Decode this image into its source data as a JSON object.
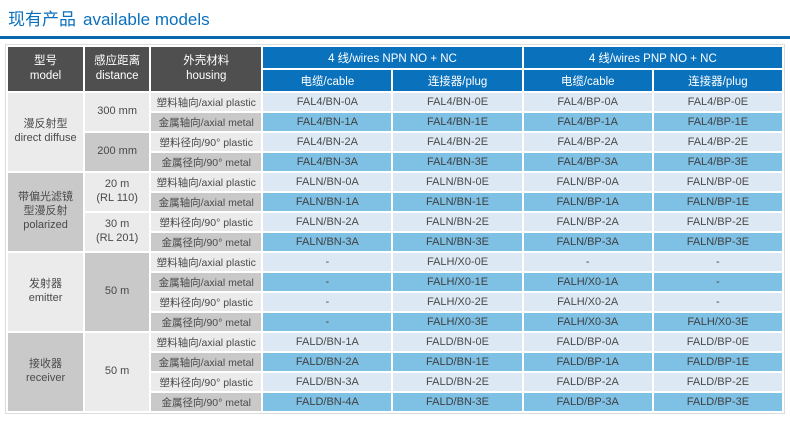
{
  "title": {
    "zh": "现有产品",
    "en": "available models"
  },
  "colors": {
    "accent_blue": "#0a70bd",
    "rule_blue": "#0a67ae",
    "header_gray": "#4f4f4f",
    "blue_header": "#0a72bd",
    "row_light_blue": "#dce8f3",
    "row_medium_blue": "#7fc0e5",
    "cell_light_gray": "#ebebeb",
    "cell_medium_gray": "#c9c9c9"
  },
  "table": {
    "columns": {
      "model": {
        "zh": "型号",
        "en": "model"
      },
      "distance": {
        "zh": "感应距离",
        "en": "distance"
      },
      "housing": {
        "zh": "外壳材料",
        "en": "housing"
      },
      "npn_group": "4 线/wires NPN NO + NC",
      "pnp_group": "4 线/wires PNP NO + NC",
      "cable": "电缆/cable",
      "plug": "连接器/plug"
    },
    "groups": [
      {
        "model_lines": [
          "漫反射型",
          "direct diffuse"
        ],
        "model_shade": "light",
        "distances": [
          {
            "lines": [
              "300 mm"
            ],
            "rows": 2,
            "shade": "light"
          },
          {
            "lines": [
              "200 mm"
            ],
            "rows": 2,
            "shade": "dark"
          }
        ],
        "rows": [
          {
            "housing": "塑料轴向/axial plastic",
            "cells": [
              "FAL4/BN-0A",
              "FAL4/BN-0E",
              "FAL4/BP-0A",
              "FAL4/BP-0E"
            ]
          },
          {
            "housing": "金属轴向/axial metal",
            "cells": [
              "FAL4/BN-1A",
              "FAL4/BN-1E",
              "FAL4/BP-1A",
              "FAL4/BP-1E"
            ]
          },
          {
            "housing": "塑料径向/90° plastic",
            "cells": [
              "FAL4/BN-2A",
              "FAL4/BN-2E",
              "FAL4/BP-2A",
              "FAL4/BP-2E"
            ]
          },
          {
            "housing": "金属径向/90° metal",
            "cells": [
              "FAL4/BN-3A",
              "FAL4/BN-3E",
              "FAL4/BP-3A",
              "FAL4/BP-3E"
            ]
          }
        ]
      },
      {
        "model_lines": [
          "带偏光滤镜",
          "型漫反射",
          "polarized"
        ],
        "model_shade": "dark",
        "distances": [
          {
            "lines": [
              "20 m",
              "(RL 110)"
            ],
            "rows": 2,
            "shade": "light"
          },
          {
            "lines": [
              "30 m",
              "(RL 201)"
            ],
            "rows": 2,
            "shade": "light"
          }
        ],
        "rows": [
          {
            "housing": "塑料轴向/axial plastic",
            "cells": [
              "FALN/BN-0A",
              "FALN/BN-0E",
              "FALN/BP-0A",
              "FALN/BP-0E"
            ]
          },
          {
            "housing": "金属轴向/axial metal",
            "cells": [
              "FALN/BN-1A",
              "FALN/BN-1E",
              "FALN/BP-1A",
              "FALN/BP-1E"
            ]
          },
          {
            "housing": "塑料径向/90° plastic",
            "cells": [
              "FALN/BN-2A",
              "FALN/BN-2E",
              "FALN/BP-2A",
              "FALN/BP-2E"
            ]
          },
          {
            "housing": "金属径向/90° metal",
            "cells": [
              "FALN/BN-3A",
              "FALN/BN-3E",
              "FALN/BP-3A",
              "FALN/BP-3E"
            ]
          }
        ]
      },
      {
        "model_lines": [
          "发射器",
          "emitter"
        ],
        "model_shade": "light",
        "distances": [
          {
            "lines": [
              "50 m"
            ],
            "rows": 4,
            "shade": "dark"
          }
        ],
        "rows": [
          {
            "housing": "塑料轴向/axial plastic",
            "cells": [
              "-",
              "FALH/X0-0E",
              "-",
              "-"
            ]
          },
          {
            "housing": "金属轴向/axial metal",
            "cells": [
              "-",
              "FALH/X0-1E",
              "FALH/X0-1A",
              "-"
            ]
          },
          {
            "housing": "塑料径向/90° plastic",
            "cells": [
              "-",
              "FALH/X0-2E",
              "FALH/X0-2A",
              "-"
            ]
          },
          {
            "housing": "金属径向/90° metal",
            "cells": [
              "-",
              "FALH/X0-3E",
              "FALH/X0-3A",
              "FALH/X0-3E"
            ]
          }
        ]
      },
      {
        "model_lines": [
          "接收器",
          "receiver"
        ],
        "model_shade": "dark",
        "distances": [
          {
            "lines": [
              "50 m"
            ],
            "rows": 4,
            "shade": "light"
          }
        ],
        "rows": [
          {
            "housing": "塑料轴向/axial plastic",
            "cells": [
              "FALD/BN-1A",
              "FALD/BN-0E",
              "FALD/BP-0A",
              "FALD/BP-0E"
            ]
          },
          {
            "housing": "金属轴向/axial metal",
            "cells": [
              "FALD/BN-2A",
              "FALD/BN-1E",
              "FALD/BP-1A",
              "FALD/BP-1E"
            ]
          },
          {
            "housing": "塑料径向/90° plastic",
            "cells": [
              "FALD/BN-3A",
              "FALD/BN-2E",
              "FALD/BP-2A",
              "FALD/BP-2E"
            ]
          },
          {
            "housing": "金属径向/90° metal",
            "cells": [
              "FALD/BN-4A",
              "FALD/BN-3E",
              "FALD/BP-3A",
              "FALD/BP-3E"
            ]
          }
        ]
      }
    ]
  }
}
